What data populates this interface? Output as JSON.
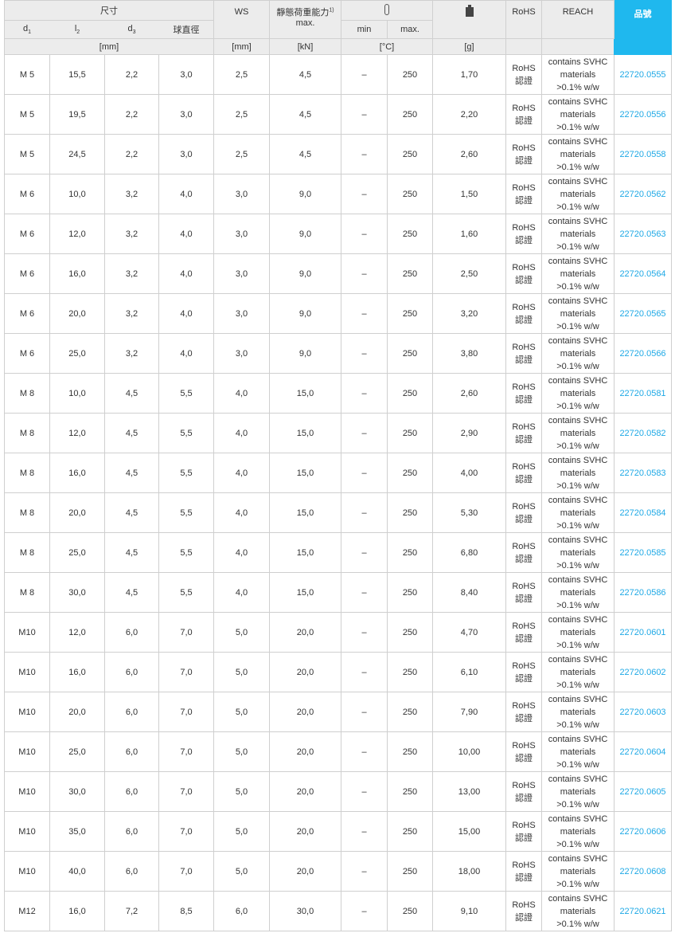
{
  "header": {
    "dimensions": "尺寸",
    "d1": "d",
    "d1_sub": "1",
    "l2": "l",
    "l2_sub": "2",
    "d3": "d",
    "d3_sub": "3",
    "ball": "球直徑",
    "ws": "WS",
    "load": "靜態荷重能力",
    "load_sup": "1)",
    "load_max": "max.",
    "temp_icon": "thermometer-icon",
    "min": "min",
    "max": "max.",
    "weight_icon": "weight-icon",
    "rohs": "RoHS",
    "reach": "REACH",
    "part_no": "品號",
    "unit_mm": "[mm]",
    "unit_ws": "[mm]",
    "unit_kn": "[kN]",
    "unit_c": "[°C]",
    "unit_g": "[g]"
  },
  "colors": {
    "accent": "#1fb8ee",
    "header_bg": "#ececec",
    "link": "#1fa9e6"
  },
  "rows": [
    [
      "M 5",
      "15,5",
      "2,2",
      "3,0",
      "2,5",
      "4,5",
      "–",
      "250",
      "1,70",
      "22720.0555"
    ],
    [
      "M 5",
      "19,5",
      "2,2",
      "3,0",
      "2,5",
      "4,5",
      "–",
      "250",
      "2,20",
      "22720.0556"
    ],
    [
      "M 5",
      "24,5",
      "2,2",
      "3,0",
      "2,5",
      "4,5",
      "–",
      "250",
      "2,60",
      "22720.0558"
    ],
    [
      "M 6",
      "10,0",
      "3,2",
      "4,0",
      "3,0",
      "9,0",
      "–",
      "250",
      "1,50",
      "22720.0562"
    ],
    [
      "M 6",
      "12,0",
      "3,2",
      "4,0",
      "3,0",
      "9,0",
      "–",
      "250",
      "1,60",
      "22720.0563"
    ],
    [
      "M 6",
      "16,0",
      "3,2",
      "4,0",
      "3,0",
      "9,0",
      "–",
      "250",
      "2,50",
      "22720.0564"
    ],
    [
      "M 6",
      "20,0",
      "3,2",
      "4,0",
      "3,0",
      "9,0",
      "–",
      "250",
      "3,20",
      "22720.0565"
    ],
    [
      "M 6",
      "25,0",
      "3,2",
      "4,0",
      "3,0",
      "9,0",
      "–",
      "250",
      "3,80",
      "22720.0566"
    ],
    [
      "M 8",
      "10,0",
      "4,5",
      "5,5",
      "4,0",
      "15,0",
      "–",
      "250",
      "2,60",
      "22720.0581"
    ],
    [
      "M 8",
      "12,0",
      "4,5",
      "5,5",
      "4,0",
      "15,0",
      "–",
      "250",
      "2,90",
      "22720.0582"
    ],
    [
      "M 8",
      "16,0",
      "4,5",
      "5,5",
      "4,0",
      "15,0",
      "–",
      "250",
      "4,00",
      "22720.0583"
    ],
    [
      "M 8",
      "20,0",
      "4,5",
      "5,5",
      "4,0",
      "15,0",
      "–",
      "250",
      "5,30",
      "22720.0584"
    ],
    [
      "M 8",
      "25,0",
      "4,5",
      "5,5",
      "4,0",
      "15,0",
      "–",
      "250",
      "6,80",
      "22720.0585"
    ],
    [
      "M 8",
      "30,0",
      "4,5",
      "5,5",
      "4,0",
      "15,0",
      "–",
      "250",
      "8,40",
      "22720.0586"
    ],
    [
      "M10",
      "12,0",
      "6,0",
      "7,0",
      "5,0",
      "20,0",
      "–",
      "250",
      "4,70",
      "22720.0601"
    ],
    [
      "M10",
      "16,0",
      "6,0",
      "7,0",
      "5,0",
      "20,0",
      "–",
      "250",
      "6,10",
      "22720.0602"
    ],
    [
      "M10",
      "20,0",
      "6,0",
      "7,0",
      "5,0",
      "20,0",
      "–",
      "250",
      "7,90",
      "22720.0603"
    ],
    [
      "M10",
      "25,0",
      "6,0",
      "7,0",
      "5,0",
      "20,0",
      "–",
      "250",
      "10,00",
      "22720.0604"
    ],
    [
      "M10",
      "30,0",
      "6,0",
      "7,0",
      "5,0",
      "20,0",
      "–",
      "250",
      "13,00",
      "22720.0605"
    ],
    [
      "M10",
      "35,0",
      "6,0",
      "7,0",
      "5,0",
      "20,0",
      "–",
      "250",
      "15,00",
      "22720.0606"
    ],
    [
      "M10",
      "40,0",
      "6,0",
      "7,0",
      "5,0",
      "20,0",
      "–",
      "250",
      "18,00",
      "22720.0608"
    ],
    [
      "M12",
      "16,0",
      "7,2",
      "8,5",
      "6,0",
      "30,0",
      "–",
      "250",
      "9,10",
      "22720.0621"
    ]
  ],
  "rohs_text": [
    "RoHS",
    "認證"
  ],
  "reach_text": [
    "contains SVHC",
    "materials",
    ">0.1% w/w"
  ]
}
